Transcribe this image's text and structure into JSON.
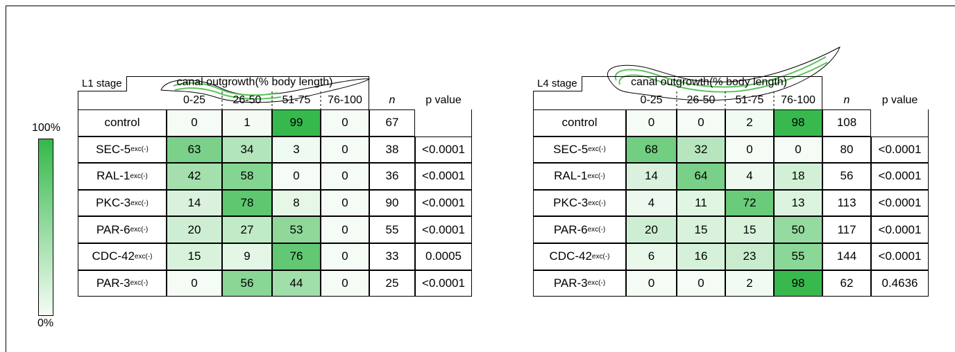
{
  "legend": {
    "top": "100%",
    "bottom": "0%"
  },
  "tables": [
    {
      "stage": "L1 stage",
      "header": "canal outgrowth(% body length)",
      "columns": [
        "0-25",
        "26-50",
        "51-75",
        "76-100"
      ],
      "n_label": "n",
      "p_label": "p value",
      "rows": [
        {
          "label": "control",
          "values": [
            0,
            1,
            99,
            0
          ],
          "n": 67
        },
        {
          "label": "SEC-5",
          "superscript": "exc(-)",
          "values": [
            63,
            34,
            3,
            0
          ],
          "n": 38,
          "p": "<0.0001"
        },
        {
          "label": "RAL-1",
          "superscript": "exc(-)",
          "values": [
            42,
            58,
            0,
            0
          ],
          "n": 36,
          "p": "<0.0001"
        },
        {
          "label": "PKC-3",
          "superscript": "exc(-)",
          "values": [
            14,
            78,
            8,
            0
          ],
          "n": 90,
          "p": "<0.0001"
        },
        {
          "label": "PAR-6",
          "superscript": "exc(-)",
          "values": [
            20,
            27,
            53,
            0
          ],
          "n": 55,
          "p": "<0.0001"
        },
        {
          "label": "CDC-42",
          "superscript": "exc(-)",
          "values": [
            15,
            9,
            76,
            0
          ],
          "n": 33,
          "p": "0.0005"
        },
        {
          "label": "PAR-3",
          "superscript": "exc(-)",
          "values": [
            0,
            56,
            44,
            0
          ],
          "n": 25,
          "p": "<0.0001"
        }
      ]
    },
    {
      "stage": "L4 stage",
      "header": "canal outgrowth(% body length)",
      "columns": [
        "0-25",
        "26-50",
        "51-75",
        "76-100"
      ],
      "n_label": "n",
      "p_label": "p value",
      "rows": [
        {
          "label": "control",
          "values": [
            0,
            0,
            2,
            98
          ],
          "n": 108
        },
        {
          "label": "SEC-5",
          "superscript": "exc(-)",
          "values": [
            68,
            32,
            0,
            0
          ],
          "n": 80,
          "p": "<0.0001"
        },
        {
          "label": "RAL-1",
          "superscript": "exc(-)",
          "values": [
            14,
            64,
            4,
            18
          ],
          "n": 56,
          "p": "<0.0001"
        },
        {
          "label": "PKC-3",
          "superscript": "exc(-)",
          "values": [
            4,
            11,
            72,
            13
          ],
          "n": 113,
          "p": "<0.0001"
        },
        {
          "label": "PAR-6",
          "superscript": "exc(-)",
          "values": [
            20,
            15,
            15,
            50
          ],
          "n": 117,
          "p": "<0.0001"
        },
        {
          "label": "CDC-42",
          "superscript": "exc(-)",
          "values": [
            6,
            16,
            23,
            55
          ],
          "n": 144,
          "p": "<0.0001"
        },
        {
          "label": "PAR-3",
          "superscript": "exc(-)",
          "values": [
            0,
            0,
            2,
            98
          ],
          "n": 62,
          "p": "0.4636"
        }
      ]
    }
  ]
}
